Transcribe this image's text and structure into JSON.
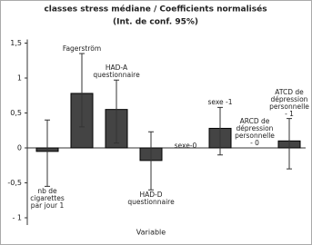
{
  "chart_data": {
    "type": "bar",
    "title": "classes stress médiane / Coefficients normalisés",
    "subtitle": "(Int. de conf. 95%)",
    "x_label": "Variable",
    "categories": [
      "nb de\ncigarettes\npar jour 1",
      "Fagerström",
      "HAD-A\nquestionnaire",
      "HAD-D\nquestionnaire",
      "sexe-0",
      "sexe -1",
      "ARCD de\ndépression\npersonnelle\n- 0",
      "ATCD de\ndépression\npersonnelle\n- 1"
    ],
    "series": [
      {
        "color": "#444444",
        "values": [
          -0.05,
          0.78,
          0.55,
          -0.18,
          0,
          0.28,
          0,
          0.1
        ],
        "ci_low": [
          -0.55,
          0.3,
          0.07,
          -0.6,
          null,
          -0.1,
          null,
          -0.3
        ],
        "ci_high": [
          0.4,
          1.35,
          0.97,
          0.23,
          null,
          0.58,
          null,
          0.42
        ]
      }
    ],
    "ylim": [
      -1,
      1.5
    ],
    "yticks": [
      {
        "value": -1,
        "label": "- 1"
      },
      {
        "value": -0.5,
        "label": "-0,5"
      },
      0,
      {
        "value": 0.5,
        "label": "0,5"
      },
      1,
      {
        "value": 1.5,
        "label": "1,5"
      }
    ],
    "grid": false
  }
}
